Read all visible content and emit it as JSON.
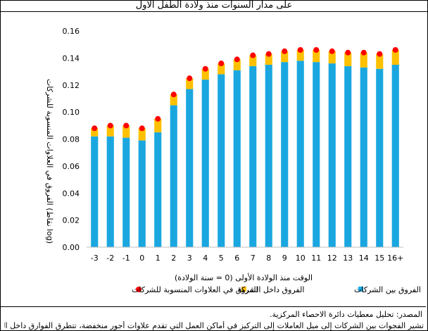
{
  "title": "على مدار السنوات منذ ولادة الطفل الأول",
  "source": "المصدر: تحليل معطيات دائرة الاحصاء المركزية.",
  "note": "تشير الفجوات بين الشركات إلى ميل العاملات إلى التركيز في أماكن العمل التي تقدم علاوات أجور منخفضة، تتطرق الفوارق داخل الشركة",
  "colors": {
    "between": "#1aa7e0",
    "within": "#ffc000",
    "total": "#ff0000"
  },
  "chart_data": {
    "type": "bar",
    "stacked": true,
    "xlabel": "الوقت منذ الولادة الأولى (0 = سنة الولادة)",
    "ylabel": "الفروق في العلاوات المنسوبة للشركات (نقاط log)",
    "ylim": [
      0,
      0.16
    ],
    "yticks": [
      "0.00",
      "0.02",
      "0.04",
      "0.06",
      "0.08",
      "0.10",
      "0.12",
      "0.14",
      "0.16"
    ],
    "categories": [
      "-3",
      "-2",
      "-1",
      "0",
      "1",
      "2",
      "3",
      "4",
      "5",
      "6",
      "7",
      "8",
      "9",
      "10",
      "11",
      "12",
      "13",
      "14",
      "15",
      "16+"
    ],
    "series": [
      {
        "name": "الفروق بين الشركات",
        "kind": "bar",
        "values": [
          0.082,
          0.082,
          0.081,
          0.079,
          0.085,
          0.105,
          0.117,
          0.124,
          0.128,
          0.131,
          0.134,
          0.135,
          0.137,
          0.138,
          0.137,
          0.136,
          0.134,
          0.133,
          0.132,
          0.135
        ]
      },
      {
        "name": "الفروق داخل الشركة",
        "kind": "bar",
        "values": [
          0.006,
          0.008,
          0.009,
          0.009,
          0.01,
          0.008,
          0.008,
          0.008,
          0.008,
          0.008,
          0.008,
          0.008,
          0.008,
          0.008,
          0.009,
          0.009,
          0.01,
          0.011,
          0.011,
          0.011
        ]
      },
      {
        "name": "الفروق في العلاوات المنسوبة للشركات",
        "kind": "dot",
        "values": [
          0.088,
          0.09,
          0.09,
          0.088,
          0.095,
          0.113,
          0.125,
          0.132,
          0.136,
          0.139,
          0.142,
          0.143,
          0.145,
          0.146,
          0.146,
          0.145,
          0.144,
          0.144,
          0.143,
          0.146
        ]
      }
    ],
    "legend_position": "bottom",
    "grid": false
  }
}
